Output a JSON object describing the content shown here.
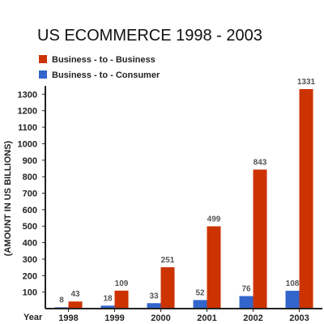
{
  "chart_data": {
    "type": "bar",
    "title": "US ECOMMERCE 1998 - 2003",
    "xlabel": "Year",
    "ylabel": "(AMOUNT IN US BILLIONS)",
    "categories": [
      "1998",
      "1999",
      "2000",
      "2001",
      "2002",
      "2003"
    ],
    "ylim": [
      0,
      1350
    ],
    "yticks": [
      100,
      200,
      300,
      400,
      500,
      600,
      700,
      800,
      900,
      1000,
      1100,
      1200,
      1300
    ],
    "legend_position": "top-left",
    "grid": false,
    "series": [
      {
        "name": "Business - to - Consumer",
        "color": "#3366cc",
        "values": [
          8,
          18,
          33,
          52,
          76,
          108
        ]
      },
      {
        "name": "Business - to - Business",
        "color": "#cc3300",
        "values": [
          43,
          109,
          251,
          499,
          843,
          1331
        ]
      }
    ],
    "legend": [
      {
        "series": 1,
        "label": "Business - to - Business"
      },
      {
        "series": 0,
        "label": "Business - to - Consumer"
      }
    ]
  }
}
